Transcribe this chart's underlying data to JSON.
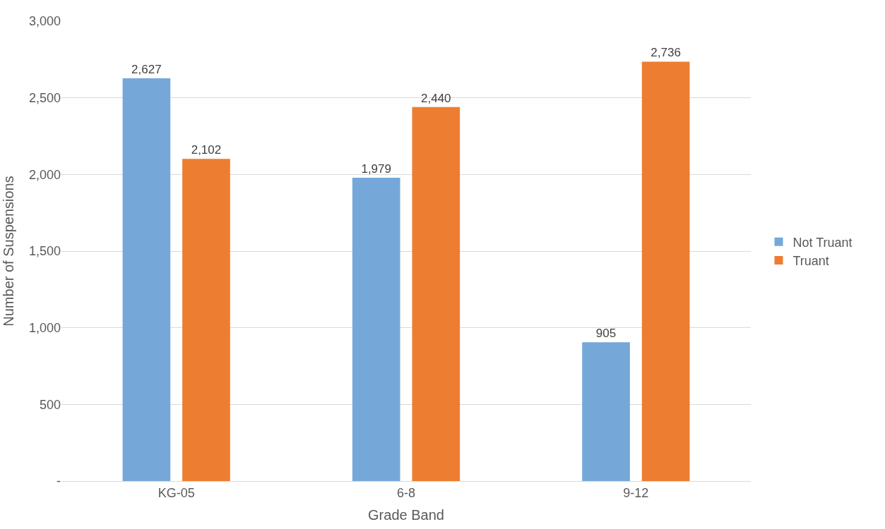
{
  "chart_data": {
    "type": "bar",
    "xlabel": "Grade Band",
    "ylabel": "Number of Suspensions",
    "categories": [
      "KG-05",
      "6-8",
      "9-12"
    ],
    "series": [
      {
        "name": "Not Truant",
        "color": "#75a8d9",
        "values": [
          2627,
          1979,
          905
        ],
        "value_labels": [
          "2,627",
          "1,979",
          "905"
        ]
      },
      {
        "name": "Truant",
        "color": "#ed7d31",
        "values": [
          2102,
          2440,
          2736
        ],
        "value_labels": [
          "2,102",
          "2,440",
          "2,736"
        ]
      }
    ],
    "ylim": [
      0,
      3000
    ],
    "yticks": [
      {
        "value": 0,
        "label": "-"
      },
      {
        "value": 500,
        "label": "500"
      },
      {
        "value": 1000,
        "label": "1,000"
      },
      {
        "value": 1500,
        "label": "1,500"
      },
      {
        "value": 2000,
        "label": "2,000"
      },
      {
        "value": 2500,
        "label": "2,500"
      },
      {
        "value": 3000,
        "label": "3,000"
      }
    ],
    "grid": "y",
    "legend": "right"
  }
}
